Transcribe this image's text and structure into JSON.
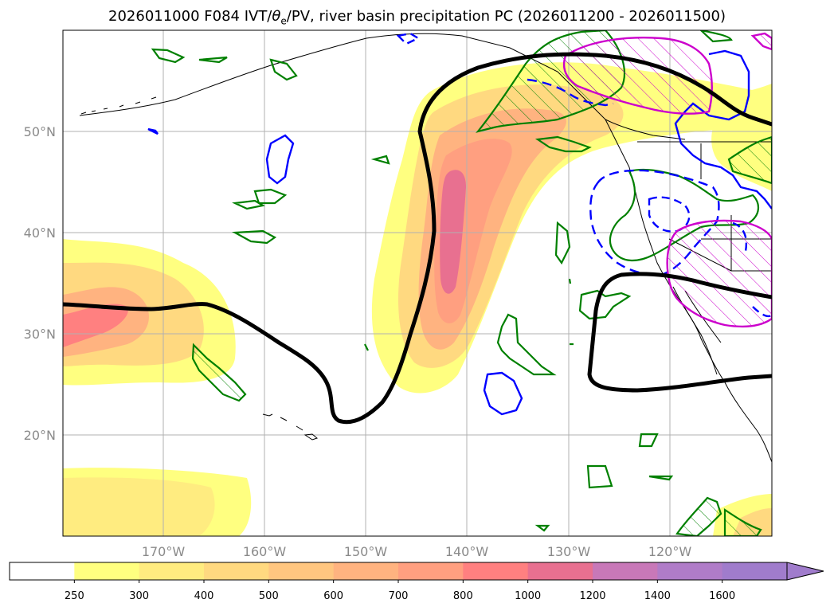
{
  "title": {
    "prefix": "2026011000 F084 IVT/",
    "theta": "θ",
    "sub": "e",
    "suffix": "/PV, river basin precipitation PC (2026011200 - 2026011500)"
  },
  "map": {
    "lon_ticks": [
      "170°W",
      "160°W",
      "150°W",
      "140°W",
      "130°W",
      "120°W"
    ],
    "lat_ticks": [
      "50°N",
      "40°N",
      "30°N",
      "20°N"
    ],
    "extent": {
      "lon_min": -180,
      "lon_max": -110,
      "lat_min": 10,
      "lat_max": 60
    },
    "colors": {
      "theta_e_contour": "#000000",
      "pv_contour": "#008000",
      "precip_positive": "#0000ff",
      "precip_negative_hatch": "#cc00cc",
      "coastline": "#000000"
    }
  },
  "colorbar": {
    "levels": [
      "250",
      "300",
      "400",
      "500",
      "600",
      "700",
      "800",
      "1000",
      "1200",
      "1400",
      "1600"
    ],
    "colors": [
      "#ffffff",
      "#ffff80",
      "#ffec80",
      "#ffd980",
      "#ffc680",
      "#ffb380",
      "#ff9f80",
      "#ff8080",
      "#e87090",
      "#c878b8",
      "#b07cc8",
      "#a07ccc"
    ],
    "extend": "max"
  }
}
